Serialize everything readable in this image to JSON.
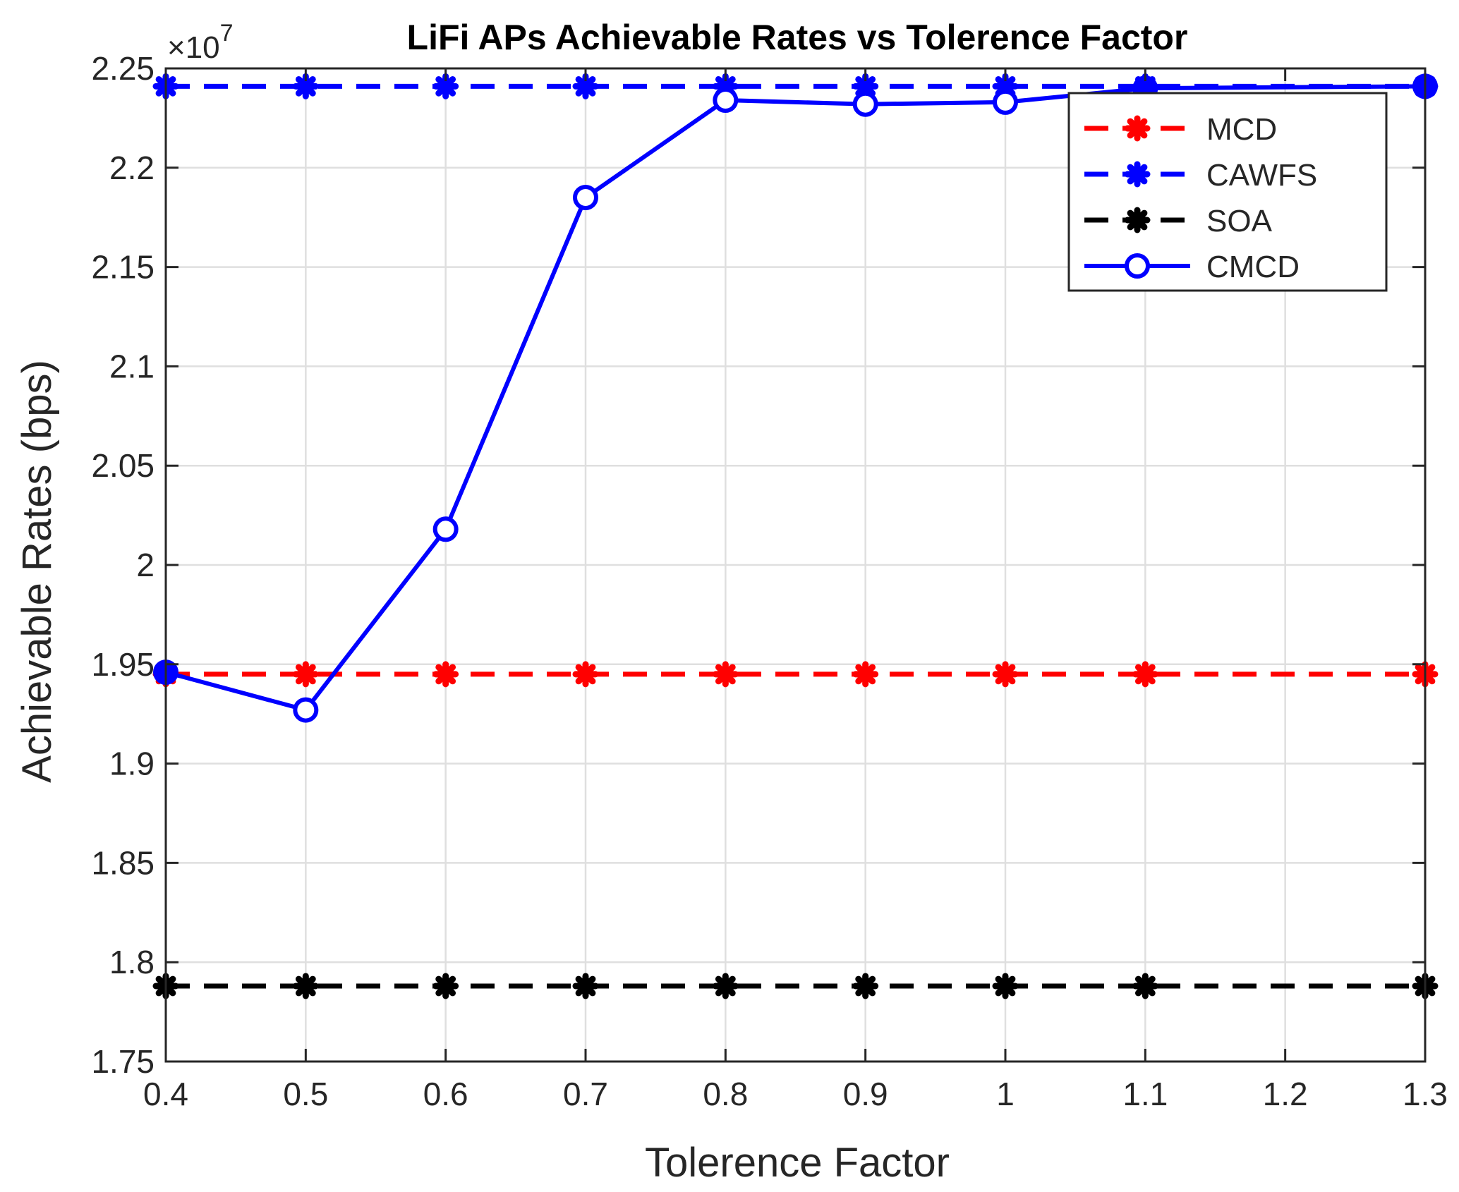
{
  "chart_data": {
    "type": "line",
    "title": "LiFi APs Achievable Rates vs Tolerence Factor",
    "xlabel": "Tolerence Factor",
    "ylabel": "Achievable Rates (bps)",
    "exponent_label": "×10",
    "exponent_power": "7",
    "xlim": [
      0.4,
      1.3
    ],
    "ylim": [
      1.75,
      2.25
    ],
    "xticks": [
      0.4,
      0.5,
      0.6,
      0.7,
      0.8,
      0.9,
      1.0,
      1.1,
      1.2,
      1.3
    ],
    "xtick_labels": [
      "0.4",
      "0.5",
      "0.6",
      "0.7",
      "0.8",
      "0.9",
      "1",
      "1.1",
      "1.2",
      "1.3"
    ],
    "yticks": [
      1.75,
      1.8,
      1.85,
      1.9,
      1.95,
      2.0,
      2.05,
      2.1,
      2.15,
      2.2,
      2.25
    ],
    "ytick_labels": [
      "1.75",
      "1.8",
      "1.85",
      "1.9",
      "1.95",
      "2",
      "2.05",
      "2.1",
      "2.15",
      "2.2",
      "2.25"
    ],
    "grid": true,
    "legend_position": "top-right",
    "x": [
      0.4,
      0.5,
      0.6,
      0.7,
      0.8,
      0.9,
      1.0,
      1.1,
      1.3
    ],
    "series": [
      {
        "name": "MCD",
        "color": "#ff0000",
        "style": "dashed",
        "marker": "asterisk",
        "values": [
          1.945,
          1.945,
          1.945,
          1.945,
          1.945,
          1.945,
          1.945,
          1.945,
          1.945
        ]
      },
      {
        "name": "CAWFS",
        "color": "#0000ff",
        "style": "dashed",
        "marker": "asterisk",
        "values": [
          2.241,
          2.241,
          2.241,
          2.241,
          2.241,
          2.241,
          2.241,
          2.241,
          2.241
        ]
      },
      {
        "name": "SOA",
        "color": "#000000",
        "style": "dashed",
        "marker": "asterisk",
        "values": [
          1.788,
          1.788,
          1.788,
          1.788,
          1.788,
          1.788,
          1.788,
          1.788,
          1.788
        ]
      },
      {
        "name": "CMCD",
        "color": "#0000ff",
        "style": "solid",
        "marker": "circle",
        "values": [
          1.946,
          1.927,
          2.018,
          2.185,
          2.234,
          2.232,
          2.233,
          2.24,
          2.241
        ]
      }
    ]
  }
}
